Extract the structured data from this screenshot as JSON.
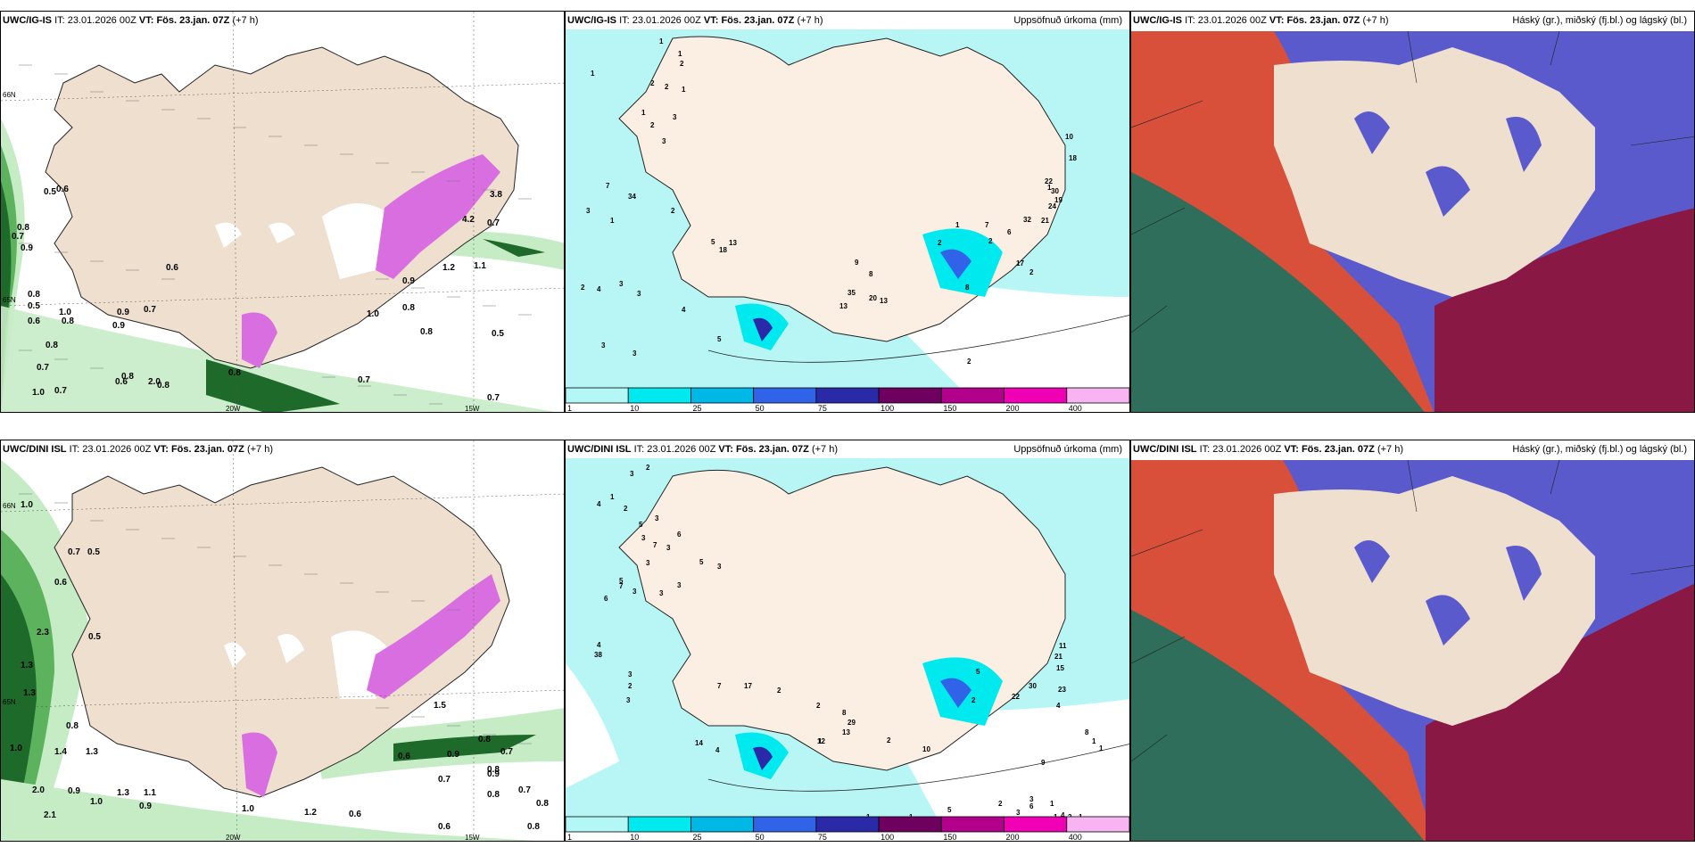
{
  "rows": [
    {
      "model": "UWC/IG-IS",
      "it_label": "IT:",
      "it_value": "23.01.2026 00Z",
      "vt_label": "VT:",
      "vt_value": "Fös. 23.jan. 07Z",
      "lead": "(+7 h)",
      "wind_labels": [
        "0.5",
        "0.6",
        "0.8",
        "0.7",
        "0.9",
        "0.6",
        "0.8",
        "0.5",
        "1.0",
        "0.9",
        "0.7",
        "0.6",
        "0.8",
        "0.9",
        "0.8",
        "0.7",
        "0.8",
        "2.0",
        "0.6",
        "1.0",
        "0.7",
        "0.8",
        "0.7",
        "0.8",
        "0.5",
        "0.9",
        "1.2",
        "1.1",
        "3.8",
        "0.7",
        "4.2",
        "1.0",
        "0.8",
        "0.7",
        "0.8"
      ],
      "precip_labels": [
        "1",
        "1",
        "2",
        "2",
        "1",
        "1",
        "2",
        "3",
        "7",
        "34",
        "3",
        "2",
        "1",
        "18",
        "5",
        "13",
        "2",
        "4",
        "3",
        "3",
        "4",
        "5",
        "3",
        "3",
        "35",
        "13",
        "20",
        "13",
        "9",
        "8",
        "1",
        "10",
        "18",
        "22",
        "30",
        "19",
        "24",
        "21",
        "32",
        "2",
        "17",
        "2",
        "2",
        "8",
        "2",
        "1",
        "6",
        "7",
        "1",
        "2",
        "3"
      ],
      "lon_labels": [
        "20W",
        "15W"
      ],
      "lat_labels": [
        "66N",
        "65N"
      ]
    },
    {
      "model": "UWC/DINI ISL",
      "it_label": "IT:",
      "it_value": "23.01.2026 00Z",
      "vt_label": "VT:",
      "vt_value": "Fös. 23.jan. 07Z",
      "lead": "(+7 h)",
      "wind_labels": [
        "1.0",
        "0.7",
        "0.5",
        "0.6",
        "2.3",
        "0.5",
        "1.3",
        "1.3",
        "0.8",
        "1.0",
        "1.4",
        "1.3",
        "2.0",
        "0.9",
        "2.1",
        "1.3",
        "1.1",
        "1.0",
        "0.9",
        "1.0",
        "1.2",
        "0.6",
        "0.8",
        "0.6",
        "0.9",
        "0.7",
        "0.8",
        "0.7",
        "0.8",
        "0.6",
        "0.8",
        "0.9",
        "1.5",
        "0.8",
        "0.7"
      ],
      "precip_labels": [
        "2",
        "3",
        "4",
        "1",
        "2",
        "5",
        "3",
        "3",
        "7",
        "3",
        "6",
        "3",
        "5",
        "3",
        "3",
        "6",
        "5",
        "7",
        "3",
        "3",
        "4",
        "38",
        "3",
        "2",
        "3",
        "7",
        "17",
        "14",
        "4",
        "2",
        "2",
        "8",
        "13",
        "12",
        "29",
        "1",
        "5",
        "2",
        "2",
        "10",
        "11",
        "21",
        "15",
        "23",
        "30",
        "22",
        "4",
        "8",
        "1",
        "1",
        "9",
        "6",
        "4",
        "1",
        "1",
        "2",
        "1",
        "3",
        "3",
        "2",
        "5",
        "1",
        "1"
      ],
      "lon_labels": [
        "20W",
        "15W"
      ],
      "lat_labels": [
        "66N",
        "65N"
      ]
    }
  ],
  "precip_title": "Uppsöfnuð úrkoma (mm)",
  "cloud_title": "Háský (gr.), miðský (fj.bl.) og lágský (bl.)",
  "colorbar": {
    "ticks": [
      "1",
      "10",
      "25",
      "50",
      "75",
      "100",
      "150",
      "200",
      "400"
    ],
    "colors": [
      "#b3f7f7",
      "#00e9ee",
      "#00b8e6",
      "#3163e8",
      "#2a2aa8",
      "#6e0060",
      "#b3008c",
      "#f000b4",
      "#f7b3f2"
    ]
  },
  "colors": {
    "land": "#efdfcf",
    "land_light": "#fbeee2",
    "sea_precip": "#b8f6f6",
    "cloud_high": "#2e6e5a",
    "cloud_mid": "#d8503a",
    "cloud_low": "#5a5acc",
    "cloud_dark": "#8a1844",
    "green_light": "#c6ecc6",
    "green_mid": "#5db35d",
    "green_dark": "#1e6a2a",
    "magenta": "#d96ee0"
  }
}
